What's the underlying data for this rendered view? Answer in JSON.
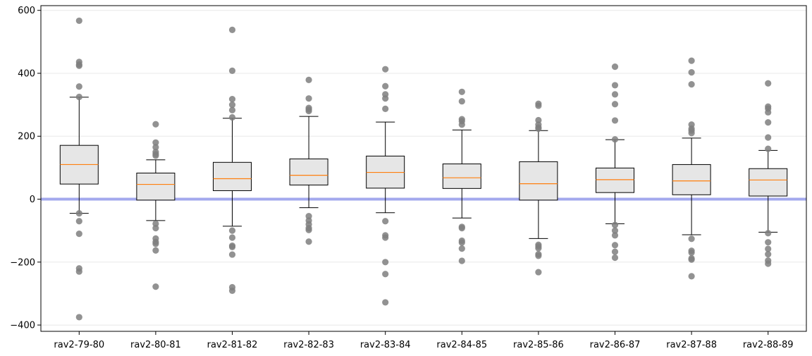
{
  "chart_data": {
    "type": "box",
    "title": "",
    "xlabel": "",
    "ylabel": "",
    "ylim": [
      -420,
      615
    ],
    "yticks": [
      -400,
      -200,
      0,
      200,
      400,
      600
    ],
    "grid": "horizontal",
    "reference_line": {
      "y": 0,
      "color": "#a3a9ee"
    },
    "colors": {
      "box_fill": "#e6e6e6",
      "median": "#ff7f0e",
      "outlier": "#7f7f7f"
    },
    "categories": [
      "rav2-79-80",
      "rav2-80-81",
      "rav2-81-82",
      "rav2-82-83",
      "rav2-83-84",
      "rav2-84-85",
      "rav2-85-86",
      "rav2-86-87",
      "rav2-87-88",
      "rav2-88-89"
    ],
    "boxes": [
      {
        "whisker_low": -45,
        "q1": 48,
        "median": 110,
        "q3": 171,
        "whisker_high": 324,
        "outliers": [
          567,
          436,
          428,
          424,
          358,
          325,
          -45,
          -70,
          -110,
          -220,
          -230,
          -375
        ]
      },
      {
        "whisker_low": -68,
        "q1": -3,
        "median": 47,
        "q3": 83,
        "whisker_high": 125,
        "outliers": [
          238,
          180,
          165,
          150,
          143,
          138,
          -78,
          -92,
          -125,
          -136,
          -142,
          -163,
          -278
        ]
      },
      {
        "whisker_low": -86,
        "q1": 27,
        "median": 65,
        "q3": 117,
        "whisker_high": 257,
        "outliers": [
          538,
          408,
          318,
          300,
          283,
          260,
          -100,
          -122,
          -148,
          -152,
          -176,
          -280,
          -291
        ]
      },
      {
        "whisker_low": -27,
        "q1": 45,
        "median": 76,
        "q3": 128,
        "whisker_high": 263,
        "outliers": [
          379,
          320,
          290,
          285,
          280,
          -54,
          -68,
          -80,
          -92,
          -98,
          -135
        ]
      },
      {
        "whisker_low": -43,
        "q1": 35,
        "median": 85,
        "q3": 137,
        "whisker_high": 245,
        "outliers": [
          413,
          359,
          333,
          320,
          287,
          -70,
          -115,
          -122,
          -200,
          -238,
          -328
        ]
      },
      {
        "whisker_low": -60,
        "q1": 34,
        "median": 68,
        "q3": 112,
        "whisker_high": 220,
        "outliers": [
          341,
          311,
          254,
          248,
          237,
          -88,
          -92,
          -132,
          -138,
          -157,
          -196
        ]
      },
      {
        "whisker_low": -125,
        "q1": -3,
        "median": 49,
        "q3": 119,
        "whisker_high": 218,
        "outliers": [
          303,
          297,
          251,
          237,
          228,
          224,
          -145,
          -150,
          -156,
          -175,
          -180,
          -232
        ]
      },
      {
        "whisker_low": -78,
        "q1": 21,
        "median": 62,
        "q3": 99,
        "whisker_high": 189,
        "outliers": [
          421,
          362,
          333,
          302,
          250,
          190,
          -82,
          -100,
          -115,
          -146,
          -167,
          -186
        ]
      },
      {
        "whisker_low": -113,
        "q1": 14,
        "median": 58,
        "q3": 110,
        "whisker_high": 194,
        "outliers": [
          440,
          403,
          365,
          237,
          224,
          218,
          210,
          -126,
          -164,
          -170,
          -188,
          -192,
          -245
        ]
      },
      {
        "whisker_low": -105,
        "q1": 10,
        "median": 61,
        "q3": 97,
        "whisker_high": 155,
        "outliers": [
          368,
          294,
          288,
          276,
          244,
          196,
          160,
          -108,
          -137,
          -158,
          -175,
          -195,
          -205
        ]
      }
    ]
  }
}
